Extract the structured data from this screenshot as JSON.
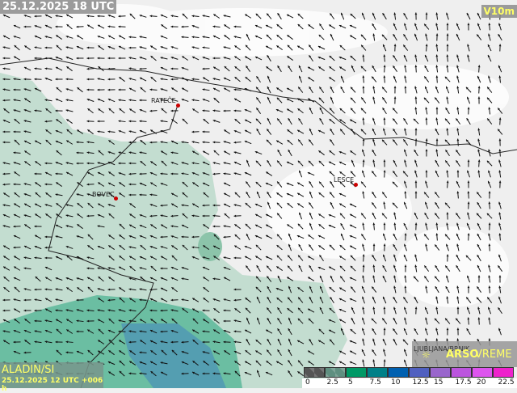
{
  "header": {
    "datetime": "25.12.2025 18 UTC",
    "field": "V10m"
  },
  "footer": {
    "model": "ALADIN/SI",
    "run": "25.12.2025 12 UTC +006 h",
    "brand": "ARSO",
    "brand_suffix": "VREME"
  },
  "cities": [
    {
      "name": "RATEČE"
    },
    {
      "name": "BOVEC"
    },
    {
      "name": "LESCE"
    },
    {
      "name": "LJUBLJANA/BRNIK"
    }
  ],
  "legend": {
    "labels": [
      "0",
      "2.5",
      "5",
      "7.5",
      "10",
      "12.5",
      "15",
      "17.5",
      "20",
      "22.5"
    ],
    "colors": [
      "#555555",
      "#5f8f80",
      "#009966",
      "#008088",
      "#0060b0",
      "#5060c0",
      "#9966cc",
      "#bb55dd",
      "#dd55ee",
      "#ee22cc"
    ]
  },
  "wind_direction": "mostly from north-east"
}
